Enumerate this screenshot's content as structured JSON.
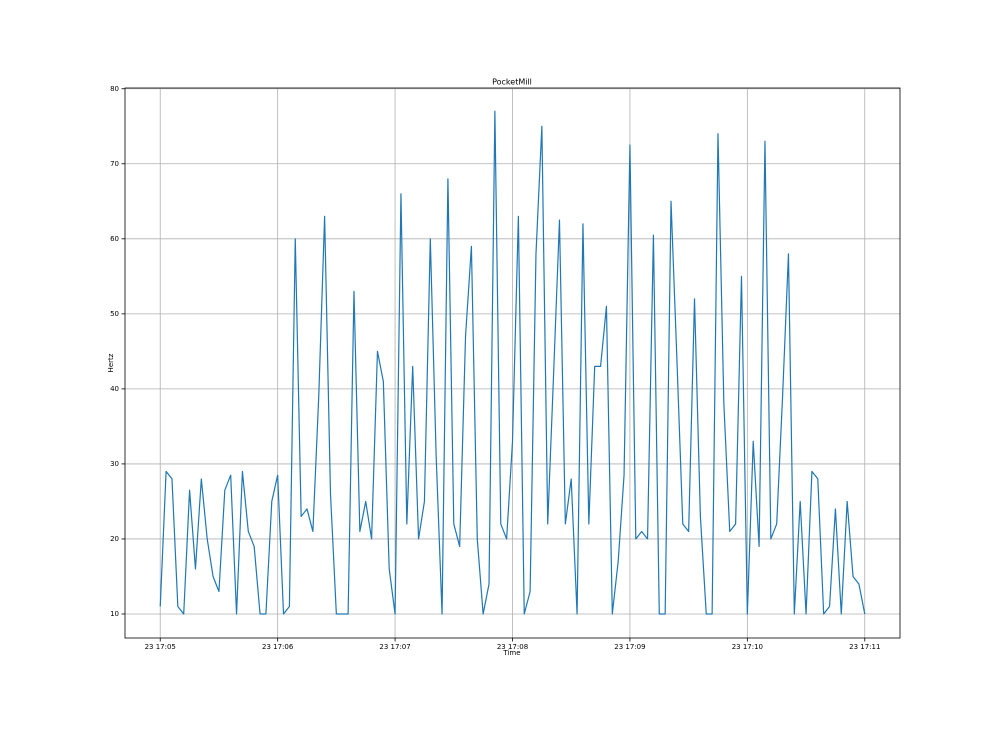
{
  "chart_data": {
    "type": "line",
    "title": "PocketMill",
    "x_label": "Time",
    "y_label": "Hertz",
    "x": [
      0,
      0.05,
      0.1,
      0.15,
      0.2,
      0.25,
      0.3,
      0.35,
      0.4,
      0.45,
      0.5,
      0.55,
      0.6,
      0.65,
      0.7,
      0.75,
      0.8,
      0.85,
      0.9,
      0.95,
      1,
      1.05,
      1.1,
      1.15,
      1.2,
      1.25,
      1.3,
      1.35,
      1.4,
      1.45,
      1.5,
      1.55,
      1.6,
      1.65,
      1.7,
      1.75,
      1.8,
      1.85,
      1.9,
      1.95,
      2,
      2.05,
      2.1,
      2.15,
      2.2,
      2.25,
      2.3,
      2.35,
      2.4,
      2.45,
      2.5,
      2.55,
      2.6,
      2.65,
      2.7,
      2.75,
      2.8,
      2.85,
      2.9,
      2.95,
      3,
      3.05,
      3.1,
      3.15,
      3.2,
      3.25,
      3.3,
      3.35,
      3.4,
      3.45,
      3.5,
      3.55,
      3.6,
      3.65,
      3.7,
      3.75,
      3.8,
      3.85,
      3.9,
      3.95,
      4,
      4.05,
      4.1,
      4.15,
      4.2,
      4.25,
      4.3,
      4.35,
      4.4,
      4.45,
      4.5,
      4.55,
      4.6,
      4.65,
      4.7,
      4.75,
      4.8,
      4.85,
      4.9,
      4.95,
      5,
      5.05,
      5.1,
      5.15,
      5.2,
      5.25,
      5.3,
      5.35,
      5.4,
      5.45,
      5.5,
      5.55,
      5.6,
      5.65,
      5.7,
      5.75,
      5.8,
      5.85,
      5.9,
      5.95,
      6
    ],
    "series": [
      {
        "color": "#1f77b4",
        "values": [
          11,
          29,
          28,
          11,
          10,
          26.5,
          16,
          28,
          20,
          15,
          13,
          26.5,
          28.5,
          10,
          29,
          21,
          19,
          10,
          10,
          25,
          28.5,
          10,
          11,
          60,
          23,
          24,
          21,
          39,
          63,
          26,
          10,
          10,
          10,
          53,
          21,
          25,
          20,
          45,
          41,
          16,
          10,
          66,
          22,
          43,
          20,
          25,
          60,
          31,
          10,
          68,
          22,
          19,
          47,
          59,
          20,
          10,
          14,
          77,
          22,
          20,
          33,
          63,
          10,
          13,
          58,
          75,
          22,
          42,
          62.5,
          22,
          28,
          10,
          62,
          22,
          43,
          43,
          51,
          10,
          17,
          28.5,
          72.5,
          20,
          21,
          20,
          60.5,
          10,
          10,
          65,
          44,
          22,
          21,
          52,
          23,
          10,
          10,
          74,
          38,
          21,
          22,
          55,
          10,
          33,
          19,
          73,
          20,
          22,
          39,
          58,
          10,
          25,
          10,
          29,
          28,
          10,
          11,
          24,
          10,
          25,
          15,
          14,
          10
        ]
      }
    ],
    "xlim": [
      -0.3,
      6.3
    ],
    "xticks": [
      {
        "value": 0,
        "label": "23 17:05"
      },
      {
        "value": 1,
        "label": "23 17:06"
      },
      {
        "value": 2,
        "label": "23 17:07"
      },
      {
        "value": 3,
        "label": "23 17:08"
      },
      {
        "value": 4,
        "label": "23 17:09"
      },
      {
        "value": 5,
        "label": "23 17:10"
      },
      {
        "value": 6,
        "label": "23 17:11"
      }
    ],
    "ylim": [
      6.8,
      80.1
    ],
    "yticks": [
      10,
      20,
      30,
      40,
      50,
      60,
      70,
      80
    ],
    "grid": true
  }
}
